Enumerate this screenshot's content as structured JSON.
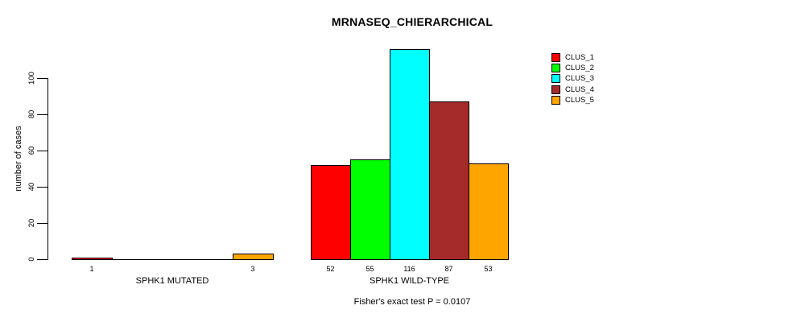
{
  "chart_data": {
    "type": "bar",
    "title": "MRNASEQ_CHIERARCHICAL",
    "ylabel": "number of cases",
    "xlabel": "",
    "caption": "Fisher's exact test P = 0.0107",
    "categories": [
      "SPHK1 MUTATED",
      "SPHK1 WILD-TYPE"
    ],
    "series": [
      {
        "name": "CLUS_1",
        "color": "#FF0000",
        "values": [
          1,
          52
        ]
      },
      {
        "name": "CLUS_2",
        "color": "#00FF00",
        "values": [
          0,
          55
        ]
      },
      {
        "name": "CLUS_3",
        "color": "#00FFFF",
        "values": [
          0,
          116
        ]
      },
      {
        "name": "CLUS_4",
        "color": "#A52A2A",
        "values": [
          0,
          87
        ]
      },
      {
        "name": "CLUS_5",
        "color": "#FFA500",
        "values": [
          3,
          53
        ]
      }
    ],
    "bar_value_labels": [
      [
        "1",
        "",
        "",
        "",
        "3"
      ],
      [
        "52",
        "55",
        "116",
        "87",
        "53"
      ]
    ],
    "yticks": [
      0,
      20,
      40,
      60,
      80,
      100
    ],
    "ylim": [
      0,
      116
    ],
    "legend_position": "top-right",
    "grid": false,
    "background": "#FFFFFF",
    "axis_color": "#000000"
  }
}
